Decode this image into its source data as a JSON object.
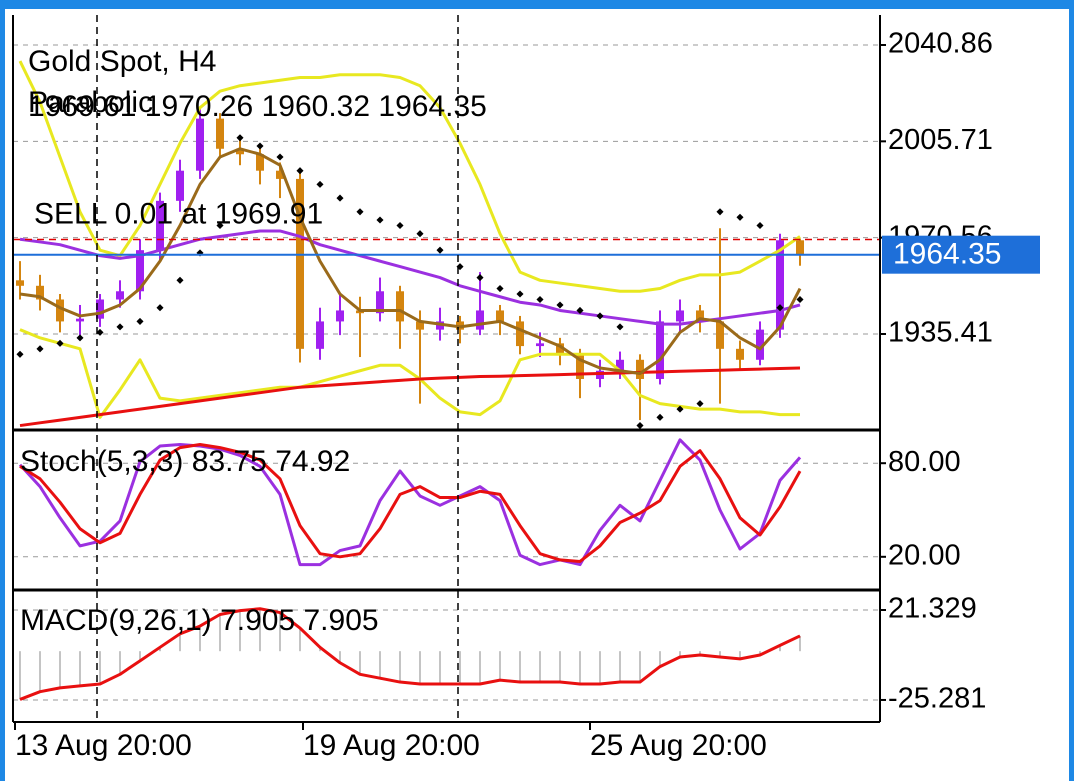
{
  "chart_data": [
    {
      "type": "candlestick",
      "title": "Gold Spot, H4",
      "indicator": "Parabolic",
      "ohlc": [
        1969.61,
        1970.26,
        1960.32,
        1964.35
      ],
      "ylim": [
        1900.38,
        2051.81
      ],
      "yticks": [
        1935.41,
        1970.56,
        2005.71,
        2040.86
      ],
      "bid": 1964.35,
      "bid_color": "#1e6fd9",
      "order": {
        "label": "SELL 0.01 at 1969.91",
        "price": 1969.91,
        "color": "#e00000"
      },
      "up_color": "#a020f0",
      "down_color": "#d4850f",
      "open": [
        1955,
        1953,
        1948,
        1940,
        1941,
        1948,
        1951,
        1966,
        1984,
        1995,
        2014,
        2003,
        2001,
        1995,
        1992,
        1930,
        1940,
        1944,
        1943,
        1951,
        1940,
        1937,
        1940,
        1937,
        1944,
        1940,
        1931,
        1932,
        1928,
        1919,
        1922,
        1926,
        1919,
        1940,
        1944,
        1940,
        1930,
        1926,
        1937,
        1969.61
      ],
      "high": [
        1962,
        1957,
        1950,
        1946,
        1950,
        1955,
        1970,
        1987,
        1999,
        2018,
        2016,
        2008,
        2004,
        1998,
        1994,
        1945,
        1950,
        1949,
        1956,
        1953,
        1944,
        1945,
        1942,
        1958,
        1946,
        1942,
        1936,
        1934,
        1930,
        1926,
        1929,
        1928,
        1944,
        1948,
        1946,
        1974,
        1933,
        1940,
        1972,
        1970.26
      ],
      "low": [
        1948,
        1944,
        1936,
        1935,
        1938,
        1945,
        1948,
        1962,
        1980,
        1992,
        2000,
        1997,
        1990,
        1985,
        1925,
        1926,
        1935,
        1927,
        1940,
        1930,
        1910,
        1933,
        1932,
        1935,
        1935,
        1928,
        1927,
        1924,
        1912,
        1916,
        1919,
        1904,
        1917,
        1936,
        1936,
        1910,
        1922,
        1924,
        1934,
        1960.32
      ],
      "close": [
        1953,
        1948,
        1940,
        1941,
        1948,
        1951,
        1966,
        1984,
        1995,
        2014,
        2003,
        2001,
        1995,
        1992,
        1930,
        1940,
        1944,
        1943,
        1951,
        1940,
        1937,
        1940,
        1937,
        1944,
        1940,
        1931,
        1932,
        1928,
        1919,
        1922,
        1926,
        1919,
        1940,
        1944,
        1940,
        1930,
        1926,
        1937,
        1969.61,
        1964.35
      ],
      "lines": [
        {
          "color": "#e8e820",
          "values": [
            2035,
            2020,
            2000,
            1980,
            1966,
            1964,
            1975,
            1990,
            2005,
            2018,
            2024,
            2026,
            2027,
            2028,
            2029,
            2029,
            2030,
            2030,
            2030,
            2029,
            2026,
            2018,
            2005,
            1990,
            1972,
            1958,
            1955,
            1954,
            1953,
            1952,
            1951,
            1951,
            1952,
            1955,
            1957,
            1957,
            1958,
            1962,
            1966,
            1971
          ]
        },
        {
          "color": "#e8e820",
          "values": [
            1937,
            1934,
            1932,
            1930,
            1905,
            1915,
            1926,
            1912,
            1911,
            1912,
            1913,
            1914,
            1915,
            1916,
            1916,
            1918,
            1920,
            1922,
            1924,
            1924,
            1919,
            1912,
            1907,
            1906,
            1911,
            1926,
            1928,
            1928,
            1928,
            1928,
            1922,
            1913,
            1910,
            1909,
            1908,
            1908,
            1907,
            1907,
            1906,
            1906
          ]
        },
        {
          "color": "#9b30e0",
          "values": [
            1970,
            1969,
            1968,
            1966,
            1964,
            1963,
            1964,
            1966,
            1968,
            1970,
            1971,
            1972,
            1973,
            1973,
            1971,
            1968,
            1966,
            1964,
            1962,
            1960,
            1958,
            1956,
            1953,
            1951,
            1949,
            1947,
            1946,
            1944,
            1943,
            1942,
            1941,
            1940,
            1939,
            1939,
            1940,
            1941,
            1942,
            1943,
            1944,
            1946
          ]
        },
        {
          "color": "#e81010",
          "values": [
            1902,
            1903,
            1904,
            1905,
            1906,
            1907,
            1908,
            1909,
            1910,
            1911,
            1912,
            1913,
            1914,
            1915,
            1916,
            1916.5,
            1917,
            1917.5,
            1918,
            1918.5,
            1919,
            1919.3,
            1919.6,
            1919.9,
            1920,
            1920.2,
            1920.4,
            1920.6,
            1920.8,
            1921,
            1921.2,
            1921.4,
            1921.6,
            1921.8,
            1922,
            1922.2,
            1922.4,
            1922.6,
            1922.8,
            1923
          ]
        },
        {
          "color": "#9a6a1a",
          "values": [
            1950,
            1949,
            1945,
            1942,
            1943,
            1946,
            1952,
            1962,
            1975,
            1990,
            2000,
            2003,
            2001,
            1997,
            1978,
            1962,
            1950,
            1944,
            1944,
            1944,
            1940,
            1939,
            1938,
            1939,
            1940,
            1937,
            1934,
            1931,
            1926,
            1923,
            1922,
            1921,
            1926,
            1936,
            1941,
            1940,
            1934,
            1930,
            1938,
            1952
          ]
        }
      ],
      "sar": {
        "color": "#000000",
        "values": [
          1928,
          1930,
          1932,
          1934,
          1936,
          1938,
          1940,
          1945,
          1955,
          1965,
          1975,
          2007,
          2004,
          2000,
          1995,
          1990,
          1985,
          1980,
          1977,
          1975,
          1972,
          1966,
          1960,
          1956,
          1952,
          1950,
          1948,
          1946,
          1944,
          1942,
          1938,
          1902,
          1905,
          1908,
          1910,
          1980,
          1978,
          1975,
          1945,
          1948
        ]
      }
    },
    {
      "type": "line",
      "title": "Stoch(5,3,3)",
      "ylim": [
        0,
        100
      ],
      "yticks": [
        {
          "value": 20,
          "label": "20.00"
        },
        {
          "value": 80,
          "label": "80.00"
        }
      ],
      "series": [
        {
          "color": "#9b30e0",
          "values": [
            79,
            65,
            45,
            27,
            30,
            43,
            81,
            91,
            92,
            91,
            89,
            85,
            78,
            60,
            15,
            15,
            24,
            27,
            56,
            75,
            59,
            53,
            59,
            65,
            56,
            21,
            15,
            18,
            15,
            37,
            53,
            43,
            69,
            95,
            82,
            50,
            25,
            35,
            69,
            83.75
          ]
        },
        {
          "color": "#e81010",
          "values": [
            78,
            70,
            55,
            38,
            29,
            35,
            60,
            82,
            90,
            92,
            90,
            87,
            82,
            70,
            40,
            22,
            20,
            22,
            38,
            60,
            65,
            58,
            58,
            62,
            60,
            40,
            22,
            18,
            17,
            27,
            42,
            48,
            56,
            78,
            88,
            70,
            45,
            34,
            52,
            74.92
          ]
        }
      ]
    },
    {
      "type": "macd",
      "title": "MACD(9,26,1)",
      "ylim": [
        -36.7,
        31.7
      ],
      "yticks": [
        -25.281,
        21.329
      ],
      "series": [
        {
          "color": "#b0b0b0",
          "values": [
            -25,
            -21,
            -19,
            -18,
            -17,
            -12,
            -5,
            2,
            9,
            13,
            19,
            21,
            22,
            20,
            12,
            2,
            -6,
            -12,
            -14,
            -16,
            -17,
            -17,
            -17,
            -17,
            -15,
            -16,
            -16,
            -16,
            -17,
            -17,
            -16,
            -16,
            -8,
            -3,
            -2,
            -3,
            -4,
            -2,
            3,
            7.905
          ]
        },
        {
          "color": "#e81010",
          "values": [
            -25,
            -21,
            -19,
            -18,
            -17,
            -12,
            -5,
            2,
            9,
            13,
            19,
            21,
            22,
            20,
            12,
            2,
            -6,
            -12,
            -14,
            -16,
            -17,
            -17,
            -17,
            -17,
            -15,
            -16,
            -16,
            -16,
            -17,
            -17,
            -16,
            -16,
            -8,
            -3,
            -2,
            -3,
            -4,
            -2,
            3,
            7.905
          ]
        }
      ]
    }
  ],
  "time_labels": [
    "13 Aug 20:00",
    "19 Aug 20:00",
    "25 Aug 20:00"
  ]
}
